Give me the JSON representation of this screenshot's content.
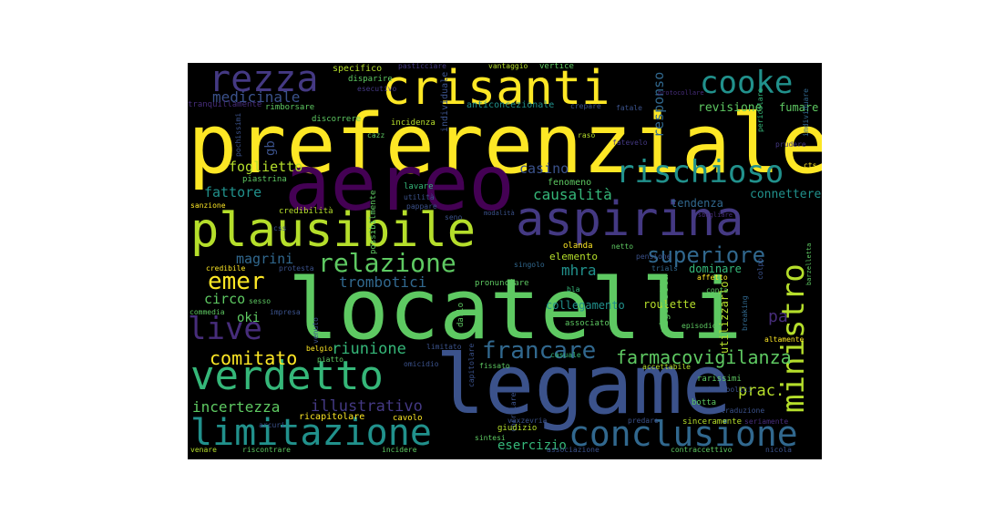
{
  "colors": {
    "background": "#000000",
    "page": "#ffffff",
    "palette": [
      "#fde725",
      "#5ec962",
      "#21918c",
      "#3b528b",
      "#440154",
      "#b5de2b",
      "#35b779",
      "#31688e",
      "#443983",
      "#472d7b"
    ]
  },
  "words": [
    {
      "text": "preferenziale",
      "color": "#fde725"
    },
    {
      "text": "aereo",
      "color": "#440154"
    },
    {
      "text": "locatelli",
      "color": "#5ec962"
    },
    {
      "text": "legame",
      "color": "#3b528b"
    },
    {
      "text": "aspirina",
      "color": "#443983"
    },
    {
      "text": "plausibile",
      "color": "#b5de2b"
    },
    {
      "text": "crisanti",
      "color": "#fde725"
    },
    {
      "text": "verdetto",
      "color": "#35b779"
    },
    {
      "text": "limitazione",
      "color": "#21918c"
    },
    {
      "text": "conclusione",
      "color": "#31688e"
    },
    {
      "text": "rezza",
      "color": "#443983"
    },
    {
      "text": "cooke",
      "color": "#21918c"
    },
    {
      "text": "rischioso",
      "color": "#21918c"
    },
    {
      "text": "relazione",
      "color": "#5ec962"
    },
    {
      "text": "ministro",
      "color": "#b5de2b"
    },
    {
      "text": "live",
      "color": "#472d7b"
    },
    {
      "text": "superiore",
      "color": "#31688e"
    },
    {
      "text": "emer",
      "color": "#fde725"
    },
    {
      "text": "francare",
      "color": "#31688e"
    },
    {
      "text": "farmacovigilanza",
      "color": "#5ec962"
    },
    {
      "text": "comitato",
      "color": "#fde725"
    },
    {
      "text": "medicinale",
      "color": "#3b528b"
    },
    {
      "text": "foglietto",
      "color": "#b5de2b"
    },
    {
      "text": "fattore",
      "color": "#21918c"
    },
    {
      "text": "magrini",
      "color": "#31688e"
    },
    {
      "text": "circo",
      "color": "#5ec962"
    },
    {
      "text": "riunione",
      "color": "#35b779"
    },
    {
      "text": "incertezza",
      "color": "#5ec962"
    },
    {
      "text": "illustrativo",
      "color": "#443983"
    },
    {
      "text": "casino",
      "color": "#3b528b"
    },
    {
      "text": "causalità",
      "color": "#35b779"
    },
    {
      "text": "mhra",
      "color": "#21918c"
    },
    {
      "text": "trombotici",
      "color": "#31688e"
    },
    {
      "text": "collegamento",
      "color": "#21918c"
    },
    {
      "text": "pa",
      "color": "#472d7b"
    },
    {
      "text": "prac.",
      "color": "#b5de2b"
    },
    {
      "text": "esercizio",
      "color": "#35b779"
    },
    {
      "text": "oki",
      "color": "#5ec962"
    },
    {
      "text": "gb",
      "color": "#3b528b"
    },
    {
      "text": "responso",
      "color": "#31688e"
    },
    {
      "text": "revisione",
      "color": "#5ec962"
    },
    {
      "text": "fumare",
      "color": "#5ec962"
    },
    {
      "text": "connettere",
      "color": "#21918c"
    },
    {
      "text": "tendenza",
      "color": "#31688e"
    },
    {
      "text": "dominare",
      "color": "#35b779"
    },
    {
      "text": "utilizzarlo",
      "color": "#b5de2b"
    },
    {
      "text": "roulette",
      "color": "#b5de2b"
    },
    {
      "text": "sigaretta",
      "color": "#5ec962"
    },
    {
      "text": "elemento",
      "color": "#b5de2b"
    },
    {
      "text": "fenomeno",
      "color": "#5ec962"
    },
    {
      "text": "individuale",
      "color": "#3b528b"
    },
    {
      "text": "anticoncezionale",
      "color": "#21918c"
    },
    {
      "text": "specifico",
      "color": "#b5de2b"
    },
    {
      "text": "disparire",
      "color": "#5ec962"
    },
    {
      "text": "esecutivo",
      "color": "#443983"
    },
    {
      "text": "pasticciare",
      "color": "#443983"
    },
    {
      "text": "vantaggio",
      "color": "#b5de2b"
    },
    {
      "text": "vertice",
      "color": "#5ec962"
    },
    {
      "text": "incidenza",
      "color": "#b5de2b"
    },
    {
      "text": "crepare",
      "color": "#3b528b"
    },
    {
      "text": "fatale",
      "color": "#3b528b"
    },
    {
      "text": "protocollare",
      "color": "#472d7b"
    },
    {
      "text": "pericolare",
      "color": "#35b779"
    },
    {
      "text": "individuare",
      "color": "#31688e"
    },
    {
      "text": "tranquillamente",
      "color": "#472d7b"
    },
    {
      "text": "rimborsare",
      "color": "#5ec962"
    },
    {
      "text": "pochissimi",
      "color": "#3b528b"
    },
    {
      "text": "discorrere",
      "color": "#5ec962"
    },
    {
      "text": "cazz",
      "color": "#5ec962"
    },
    {
      "text": "raso",
      "color": "#b5de2b"
    },
    {
      "text": "fatevelo",
      "color": "#443983"
    },
    {
      "text": "prudere",
      "color": "#443983"
    },
    {
      "text": "cts",
      "color": "#fde725"
    },
    {
      "text": "piastrina",
      "color": "#5ec962"
    },
    {
      "text": "lavare",
      "color": "#35b779"
    },
    {
      "text": "utilità",
      "color": "#3b528b"
    },
    {
      "text": "pappare",
      "color": "#3b528b"
    },
    {
      "text": "sanzione",
      "color": "#fde725"
    },
    {
      "text": "credibilità",
      "color": "#b5de2b"
    },
    {
      "text": "seno",
      "color": "#3b528b"
    },
    {
      "text": "possibilmente",
      "color": "#5ec962"
    },
    {
      "text": "modalità",
      "color": "#3b528b"
    },
    {
      "text": "sbagliare",
      "color": "#472d7b"
    },
    {
      "text": "css",
      "color": "#3b528b"
    },
    {
      "text": "credibile",
      "color": "#fde725"
    },
    {
      "text": "protesta",
      "color": "#3b528b"
    },
    {
      "text": "olanda",
      "color": "#fde725"
    },
    {
      "text": "netto",
      "color": "#5ec962"
    },
    {
      "text": "pensione",
      "color": "#3b528b"
    },
    {
      "text": "trials",
      "color": "#31688e"
    },
    {
      "text": "affetto",
      "color": "#fde725"
    },
    {
      "text": "colpo",
      "color": "#3b528b"
    },
    {
      "text": "barzelletta",
      "color": "#5ec962"
    },
    {
      "text": "singolo",
      "color": "#31688e"
    },
    {
      "text": "pronunciare",
      "color": "#5ec962"
    },
    {
      "text": "bla",
      "color": "#35b779"
    },
    {
      "text": "conta",
      "color": "#5ec962"
    },
    {
      "text": "sesso",
      "color": "#5ec962"
    },
    {
      "text": "commedia",
      "color": "#5ec962"
    },
    {
      "text": "impresa",
      "color": "#3b528b"
    },
    {
      "text": "venuto",
      "color": "#3b528b"
    },
    {
      "text": "darlo",
      "color": "#5ec962"
    },
    {
      "text": "associato",
      "color": "#5ec962"
    },
    {
      "text": "episodio",
      "color": "#5ec962"
    },
    {
      "text": "breaking",
      "color": "#31688e"
    },
    {
      "text": "belgio",
      "color": "#fde725"
    },
    {
      "text": "limitato",
      "color": "#3b528b"
    },
    {
      "text": "altamente",
      "color": "#fde725"
    },
    {
      "text": "piatto",
      "color": "#5ec962"
    },
    {
      "text": "omicidio",
      "color": "#3b528b"
    },
    {
      "text": "capitolare",
      "color": "#3b528b"
    },
    {
      "text": "fissato",
      "color": "#5ec962"
    },
    {
      "text": "casuale",
      "color": "#35b779"
    },
    {
      "text": "accettabile",
      "color": "#b5de2b"
    },
    {
      "text": "rarissimi",
      "color": "#5ec962"
    },
    {
      "text": "tromboembolici",
      "color": "#3b528b"
    },
    {
      "text": "ricapitolare",
      "color": "#fde725"
    },
    {
      "text": "cavolo",
      "color": "#fde725"
    },
    {
      "text": "arcuri",
      "color": "#3b528b"
    },
    {
      "text": "correlare",
      "color": "#3b528b"
    },
    {
      "text": "botta",
      "color": "#5ec962"
    },
    {
      "text": "traduzione",
      "color": "#3b528b"
    },
    {
      "text": "giudizio",
      "color": "#b5de2b"
    },
    {
      "text": "sintesi",
      "color": "#5ec962"
    },
    {
      "text": "vaxzevria",
      "color": "#3b528b"
    },
    {
      "text": "predare",
      "color": "#3b528b"
    },
    {
      "text": "sinceramente",
      "color": "#b5de2b"
    },
    {
      "text": "seriamente",
      "color": "#472d7b"
    },
    {
      "text": "venare",
      "color": "#b5de2b"
    },
    {
      "text": "riscontrare",
      "color": "#5ec962"
    },
    {
      "text": "incidere",
      "color": "#5ec962"
    },
    {
      "text": "associazione",
      "color": "#3b528b"
    },
    {
      "text": "contraccettivo",
      "color": "#5ec962"
    },
    {
      "text": "nicola",
      "color": "#3b528b"
    }
  ]
}
